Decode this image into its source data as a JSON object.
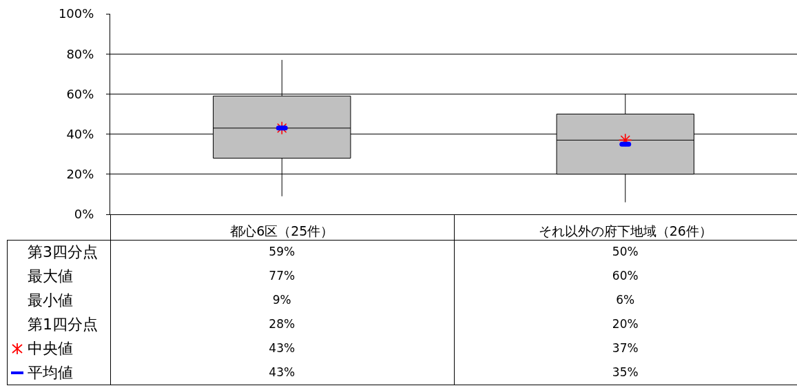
{
  "chart_data": {
    "type": "box",
    "categories": [
      "都心6区（25件）",
      "それ以外の府下地域（26件）"
    ],
    "color": "#c0c0c0",
    "boxes": [
      {
        "low": 9,
        "q1": 28,
        "median": 43,
        "q3": 59,
        "high": 77
      },
      {
        "low": 6,
        "q1": 20,
        "median": 37,
        "q3": 50,
        "high": 60
      }
    ],
    "series": [
      {
        "name": "中央値",
        "type": "scatter",
        "color": "#ff0000",
        "marker": "cross",
        "values": [
          43,
          37
        ],
        "value_labels": [
          "43%",
          "37%"
        ]
      },
      {
        "name": "平均値",
        "type": "scatter",
        "color": "#0000ff",
        "values": [
          43,
          35
        ],
        "value_labels": [
          "43%",
          "35%"
        ]
      }
    ],
    "ylim": [
      0,
      100
    ],
    "yticks": [
      {
        "value": 0,
        "label": "0%"
      },
      {
        "value": 20,
        "label": "20%"
      },
      {
        "value": 40,
        "label": "40%"
      },
      {
        "value": 60,
        "label": "60%"
      },
      {
        "value": 80,
        "label": "80%"
      },
      {
        "value": 100,
        "label": "100%"
      }
    ],
    "grid": "y",
    "legend": "bottom left",
    "annotations": [
      "第3四分点",
      "59%",
      "50%",
      "最大値",
      "77%",
      "60%",
      "最小値",
      "9%",
      "6%",
      "第1四分点",
      "28%",
      "20%"
    ]
  }
}
